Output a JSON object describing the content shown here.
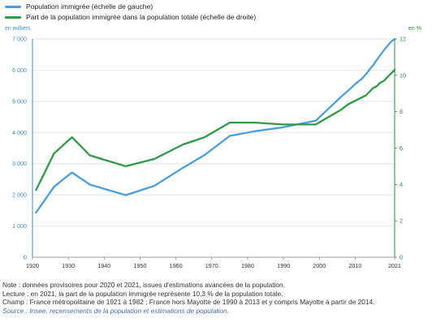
{
  "legend": {
    "items": [
      {
        "label": "Population immigrée (échelle de gauche)",
        "color": "#4a9fdb"
      },
      {
        "label": "Part de la population immigrée dans la population totale (échelle de droite)",
        "color": "#2e9a46"
      }
    ]
  },
  "chart_data": {
    "type": "line",
    "left_axis_unit": "en milliers",
    "right_axis_unit": "en %",
    "x": [
      1921,
      1926,
      1931,
      1936,
      1946,
      1954,
      1962,
      1968,
      1975,
      1982,
      1990,
      1999,
      2006,
      2008,
      2010,
      2012,
      2013,
      2014,
      2015,
      2016,
      2017,
      2018,
      2019,
      2020,
      2021
    ],
    "xlim": [
      1920,
      2021
    ],
    "xticks": [
      "1920",
      "1930",
      "1940",
      "1950",
      "1960",
      "1970",
      "1980",
      "1990",
      "2000",
      "2010",
      "2021"
    ],
    "xtick_values": [
      1920,
      1930,
      1940,
      1950,
      1960,
      1970,
      1980,
      1990,
      2000,
      2010,
      2021
    ],
    "series": [
      {
        "name": "Population immigrée (échelle de gauche)",
        "axis": "left",
        "color": "#4a9fdb",
        "values": [
          1430,
          2260,
          2720,
          2330,
          1990,
          2290,
          2870,
          3280,
          3890,
          4040,
          4170,
          4380,
          5140,
          5340,
          5550,
          5740,
          5870,
          6020,
          6160,
          6320,
          6480,
          6640,
          6780,
          6910,
          7000
        ]
      },
      {
        "name": "Part de la population immigrée dans la population totale (échelle de droite)",
        "axis": "right",
        "color": "#2e9a46",
        "values": [
          3.7,
          5.7,
          6.6,
          5.6,
          5.0,
          5.4,
          6.2,
          6.6,
          7.4,
          7.4,
          7.3,
          7.3,
          8.1,
          8.4,
          8.6,
          8.8,
          8.9,
          9.1,
          9.3,
          9.4,
          9.6,
          9.7,
          9.9,
          10.1,
          10.3
        ]
      }
    ],
    "left_ylim": [
      0,
      7000
    ],
    "left_yticks": [
      "0",
      "1 000",
      "2 000",
      "3 000",
      "4 000",
      "5 000",
      "6 000",
      "7 000"
    ],
    "left_ytick_values": [
      0,
      1000,
      2000,
      3000,
      4000,
      5000,
      6000,
      7000
    ],
    "right_ylim": [
      0,
      12
    ],
    "right_yticks": [
      "0",
      "2",
      "4",
      "6",
      "8",
      "10",
      "12"
    ],
    "right_ytick_values": [
      0,
      2,
      4,
      6,
      8,
      10,
      12
    ],
    "grid": true,
    "grid_color": "#dcdcdc",
    "left_axis_color": "#3a8fd1",
    "right_axis_color": "#2a8f3a"
  },
  "notes": {
    "note": "Note : données provisoires pour 2020 et 2021, issues d'estimations avancées de la population.",
    "lecture": "Lecture : en 2021, la part de la population immigrée représente 10,3 % de la population totale.",
    "champ": "Champ : France métropolitaine de 1921 à 1982 ; France hors Mayotte de 1990 à 2013 et y compris Mayotte à partir de 2014.",
    "source": "Source : Insee, recensements de la population et estimations de population."
  }
}
